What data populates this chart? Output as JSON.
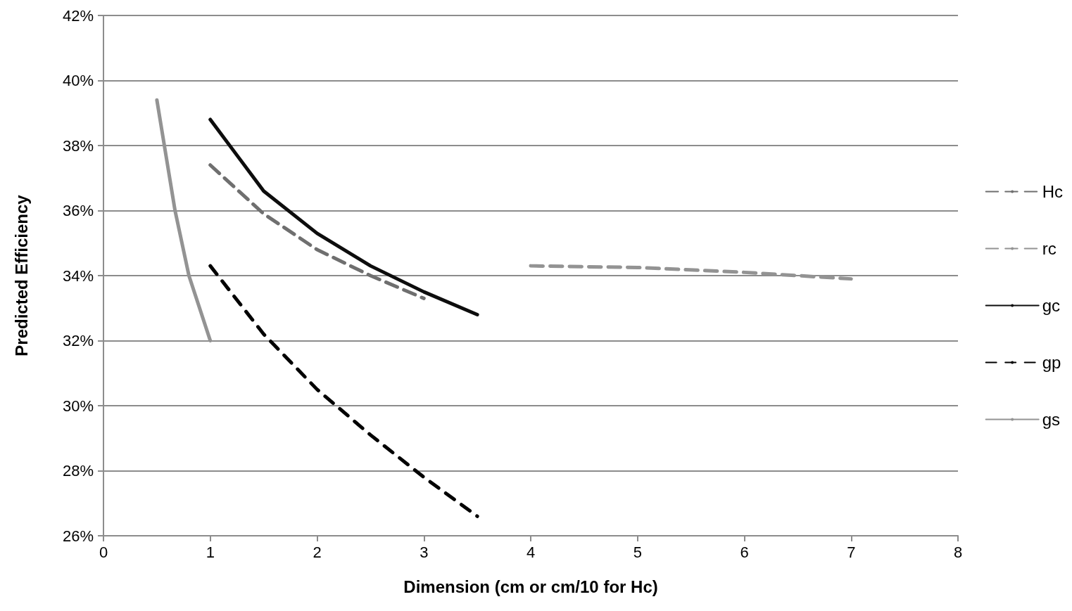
{
  "chart_data": {
    "type": "line",
    "xlabel": "Dimension (cm or cm/10 for Hc)",
    "ylabel": "Predicted Efficiency",
    "xlim": [
      0,
      8
    ],
    "xticks": [
      0,
      1,
      2,
      3,
      4,
      5,
      6,
      7,
      8
    ],
    "ylim": [
      26,
      42
    ],
    "yticks": [
      {
        "value": 26,
        "label": "26%"
      },
      {
        "value": 28,
        "label": "28%"
      },
      {
        "value": 30,
        "label": "30%"
      },
      {
        "value": 32,
        "label": "32%"
      },
      {
        "value": 34,
        "label": "34%"
      },
      {
        "value": 36,
        "label": "36%"
      },
      {
        "value": 38,
        "label": "38%"
      },
      {
        "value": 40,
        "label": "40%"
      },
      {
        "value": 42,
        "label": "42%"
      }
    ],
    "grid": "y",
    "legend": "right",
    "marker": "none",
    "series": [
      {
        "name": "Hc",
        "color": "#6f6f6f",
        "line_style": "dashed",
        "x": [
          1,
          1.5,
          2,
          2.5,
          3
        ],
        "values": [
          37.4,
          35.9,
          34.8,
          34.0,
          33.3
        ]
      },
      {
        "name": "rc",
        "color": "#939393",
        "line_style": "dashed",
        "x": [
          4,
          5,
          6,
          7
        ],
        "values": [
          34.3,
          34.25,
          34.1,
          33.9
        ]
      },
      {
        "name": "gc",
        "color": "#0d0d0d",
        "line_style": "solid",
        "x": [
          1,
          1.25,
          1.5,
          2,
          2.5,
          3,
          3.5
        ],
        "values": [
          38.8,
          37.7,
          36.6,
          35.3,
          34.3,
          33.5,
          32.8
        ]
      },
      {
        "name": "gp",
        "color": "#000000",
        "line_style": "dashed",
        "x": [
          1,
          1.5,
          2,
          2.5,
          3,
          3.5
        ],
        "values": [
          34.3,
          32.2,
          30.5,
          29.1,
          27.8,
          26.6
        ]
      },
      {
        "name": "gs",
        "color": "#939393",
        "line_style": "solid",
        "x": [
          0.5,
          0.67,
          0.8,
          0.86,
          1
        ],
        "values": [
          39.4,
          36.0,
          34.0,
          33.4,
          32.0
        ]
      }
    ]
  }
}
